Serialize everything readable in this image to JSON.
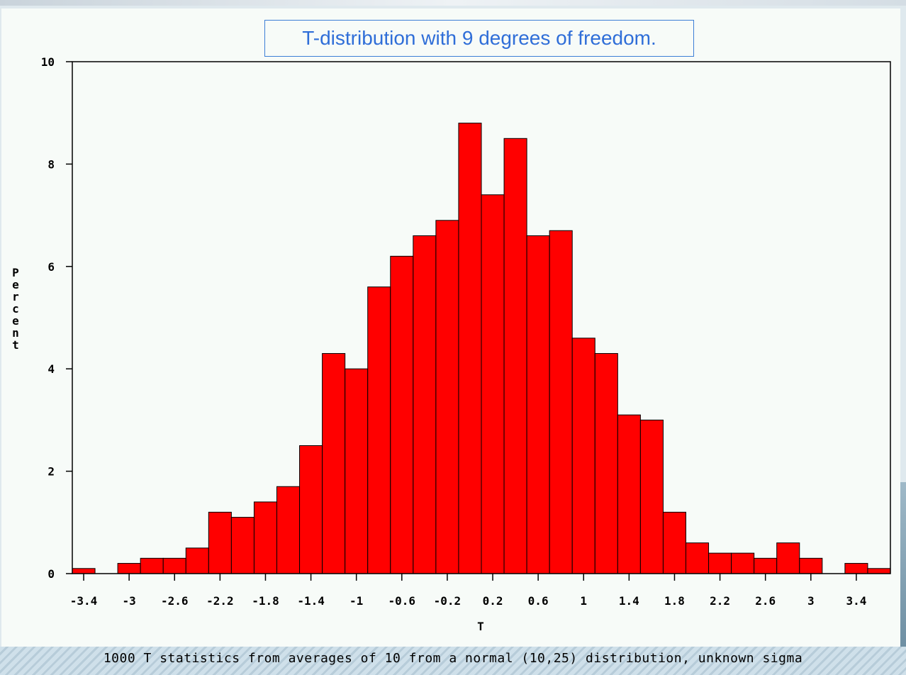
{
  "chart_data": {
    "type": "bar",
    "title": "T-distribution with 9 degrees of freedom.",
    "xlabel": "T",
    "ylabel": "Percent",
    "caption": "1000 T statistics from averages of 10 from a normal (10,25) distribution, unknown sigma",
    "bin_width": 0.2,
    "xlim": [
      -3.5,
      3.7
    ],
    "ylim": [
      0,
      10
    ],
    "yticks": [
      0,
      2,
      4,
      6,
      8,
      10
    ],
    "xticks": [
      -3.4,
      -3,
      -2.6,
      -2.2,
      -1.8,
      -1.4,
      -1,
      -0.6,
      -0.2,
      0.2,
      0.6,
      1,
      1.4,
      1.8,
      2.2,
      2.6,
      3,
      3.4
    ],
    "xtick_labels": [
      "-3.4",
      "-3",
      "-2.6",
      "-2.2",
      "-1.8",
      "-1.4",
      "-1",
      "-0.6",
      "-0.2",
      "0.2",
      "0.6",
      "1",
      "1.4",
      "1.8",
      "2.2",
      "2.6",
      "3",
      "3.4"
    ],
    "bin_centers": [
      -3.4,
      -3.2,
      -3.0,
      -2.8,
      -2.6,
      -2.4,
      -2.2,
      -2.0,
      -1.8,
      -1.6,
      -1.4,
      -1.2,
      -1.0,
      -0.8,
      -0.6,
      -0.4,
      -0.2,
      0.0,
      0.2,
      0.4,
      0.6,
      0.8,
      1.0,
      1.2,
      1.4,
      1.6,
      1.8,
      2.0,
      2.2,
      2.4,
      2.6,
      2.8,
      3.0,
      3.2,
      3.4,
      3.6
    ],
    "values": [
      0.1,
      0.0,
      0.2,
      0.3,
      0.3,
      0.5,
      1.2,
      1.1,
      1.4,
      1.7,
      2.5,
      4.3,
      4.0,
      5.6,
      6.2,
      6.6,
      6.9,
      8.8,
      7.4,
      8.5,
      6.6,
      6.7,
      4.6,
      4.3,
      3.1,
      3.0,
      1.2,
      0.6,
      0.4,
      0.4,
      0.3,
      0.6,
      0.3,
      0.0,
      0.2,
      0.1
    ],
    "bar_color": "#ff0000",
    "grid": false,
    "legend": "none"
  }
}
